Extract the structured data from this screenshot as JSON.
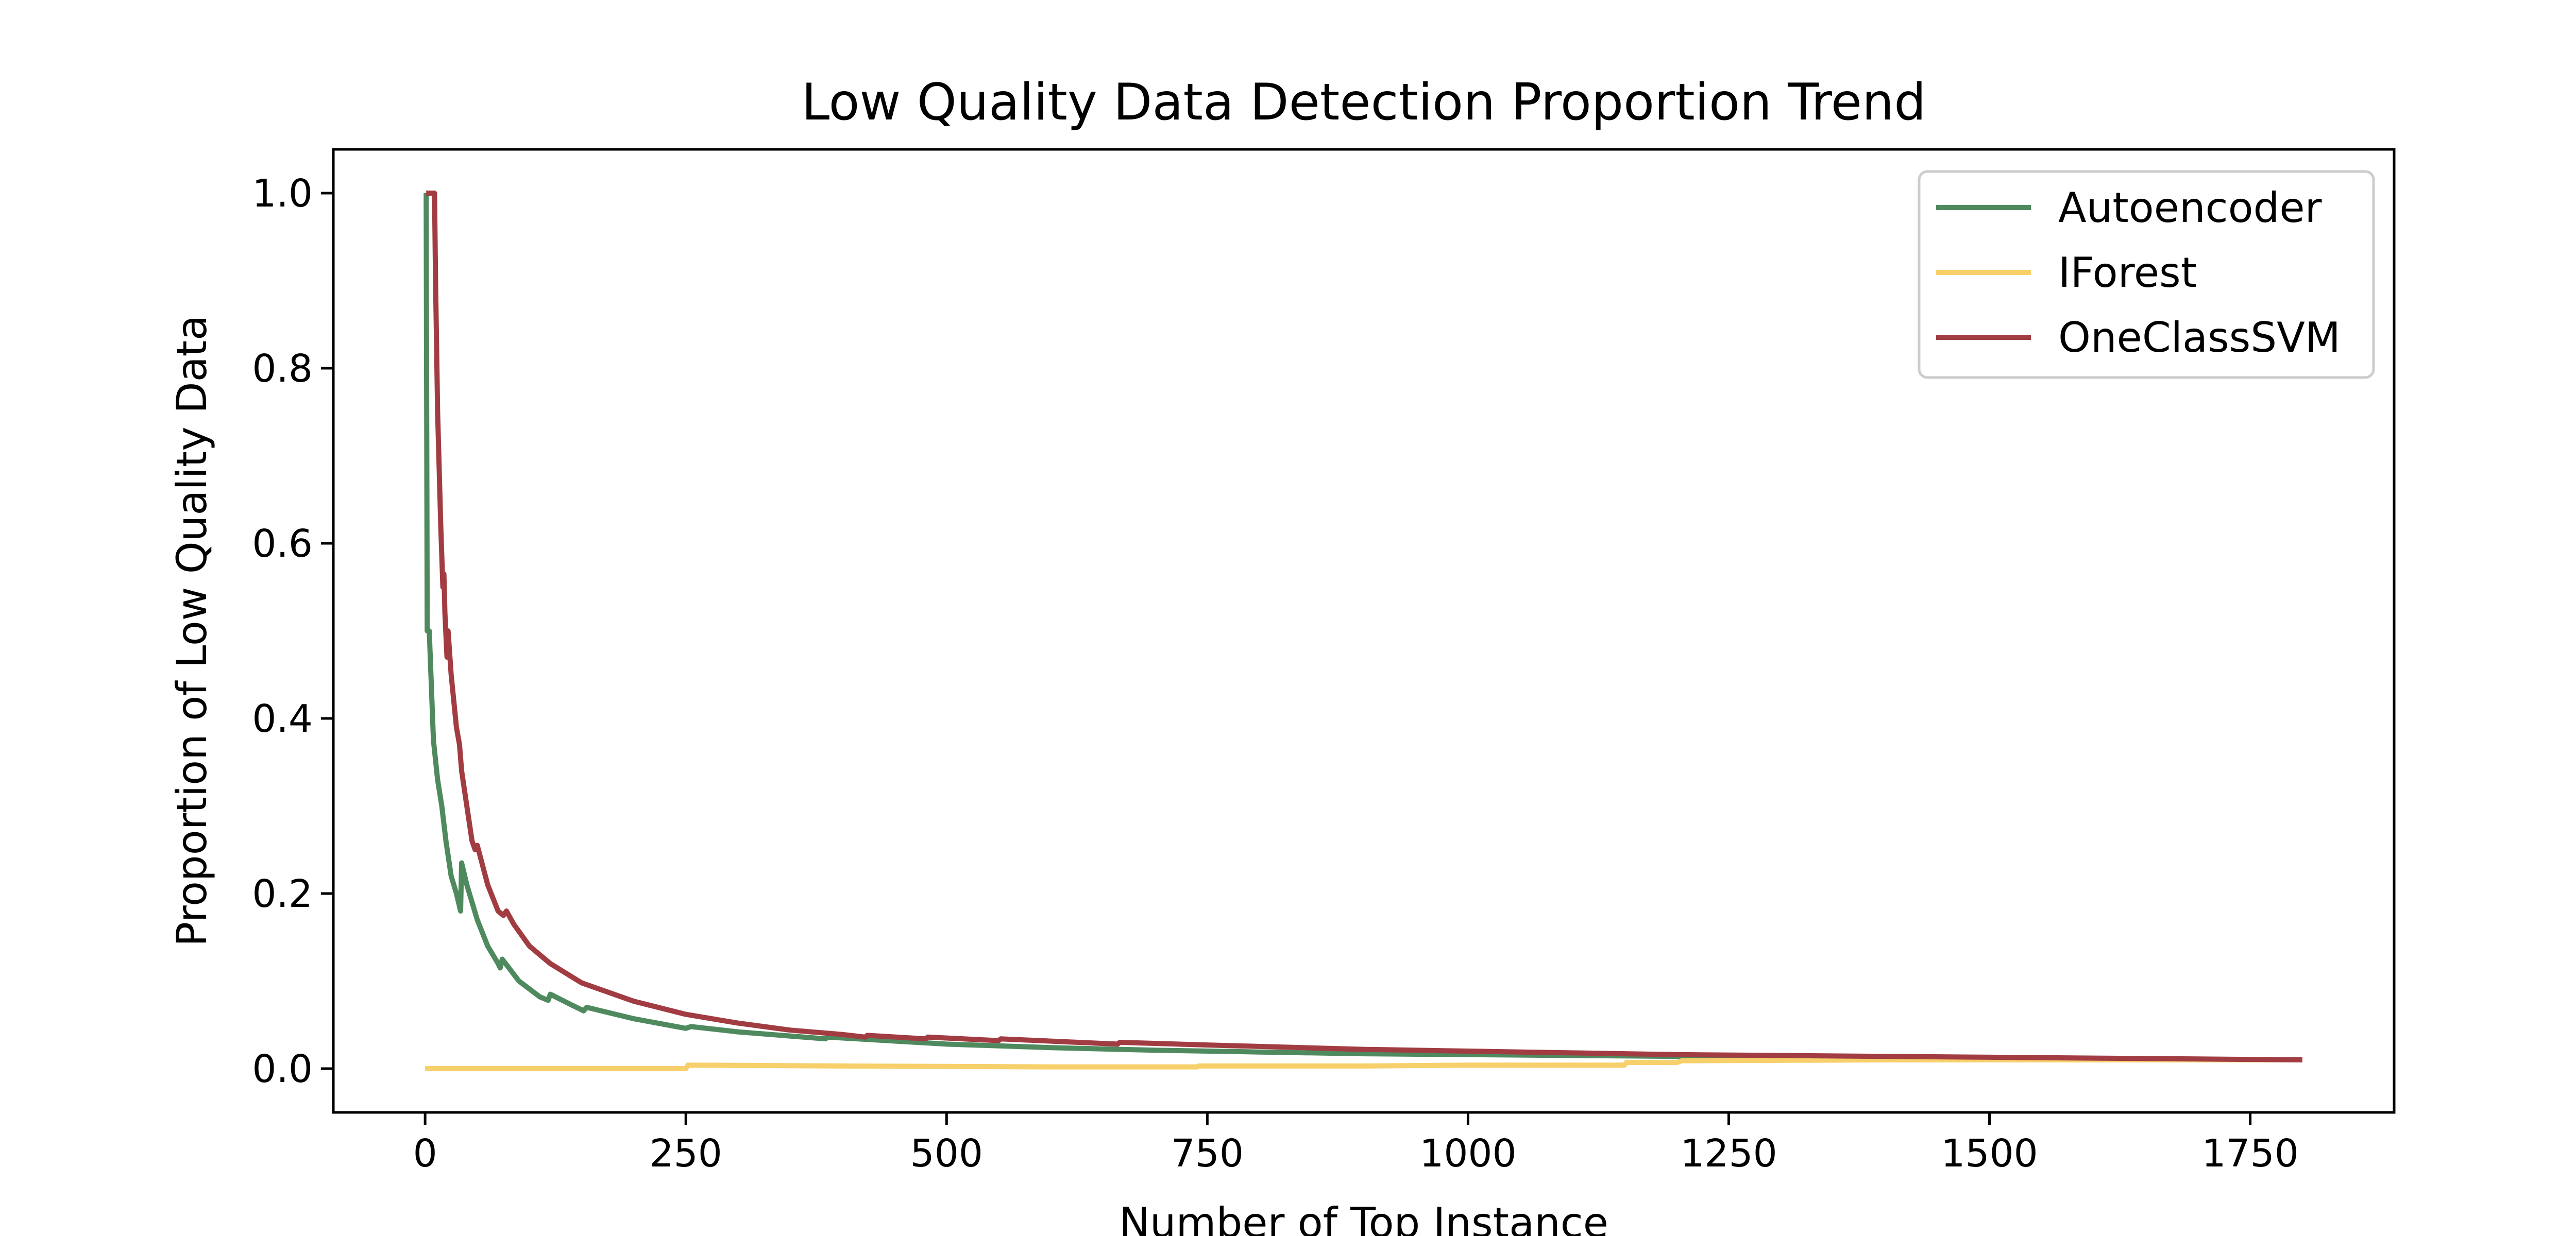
{
  "chart_data": {
    "type": "line",
    "title": "Low Quality Data Detection Proportion Trend",
    "xlabel": "Number of Top Instance",
    "ylabel": "Proportion of Low Quality Data",
    "xlim": [
      -88,
      1888
    ],
    "ylim": [
      -0.05,
      1.05
    ],
    "xticks": [
      0,
      250,
      500,
      750,
      1000,
      1250,
      1500,
      1750
    ],
    "xtick_labels": [
      "0",
      "250",
      "500",
      "750",
      "1000",
      "1250",
      "1500",
      "1750"
    ],
    "yticks": [
      0.0,
      0.2,
      0.4,
      0.6,
      0.8,
      1.0
    ],
    "ytick_labels": [
      "0.0",
      "0.2",
      "0.4",
      "0.6",
      "0.8",
      "1.0"
    ],
    "grid": false,
    "legend_position": "top-right",
    "series": [
      {
        "name": "Autoencoder",
        "color": "#4f8a5f",
        "points": [
          [
            1,
            1.0
          ],
          [
            2,
            0.5
          ],
          [
            4,
            0.5
          ],
          [
            8,
            0.375
          ],
          [
            12,
            0.33
          ],
          [
            16,
            0.3
          ],
          [
            20,
            0.26
          ],
          [
            25,
            0.22
          ],
          [
            30,
            0.2
          ],
          [
            34,
            0.18
          ],
          [
            35,
            0.235
          ],
          [
            40,
            0.21
          ],
          [
            50,
            0.17
          ],
          [
            60,
            0.14
          ],
          [
            70,
            0.12
          ],
          [
            72,
            0.115
          ],
          [
            74,
            0.125
          ],
          [
            90,
            0.1
          ],
          [
            110,
            0.082
          ],
          [
            118,
            0.078
          ],
          [
            120,
            0.085
          ],
          [
            140,
            0.073
          ],
          [
            152,
            0.066
          ],
          [
            155,
            0.07
          ],
          [
            200,
            0.057
          ],
          [
            250,
            0.046
          ],
          [
            255,
            0.048
          ],
          [
            300,
            0.042
          ],
          [
            384,
            0.034
          ],
          [
            386,
            0.036
          ],
          [
            500,
            0.028
          ],
          [
            600,
            0.024
          ],
          [
            700,
            0.021
          ],
          [
            800,
            0.019
          ],
          [
            900,
            0.017
          ],
          [
            1000,
            0.016
          ],
          [
            1100,
            0.015
          ],
          [
            1200,
            0.014
          ],
          [
            1300,
            0.013
          ],
          [
            1400,
            0.012
          ],
          [
            1500,
            0.012
          ],
          [
            1600,
            0.011
          ],
          [
            1700,
            0.0105
          ],
          [
            1800,
            0.01
          ]
        ]
      },
      {
        "name": "IForest",
        "color": "#f7d06b",
        "points": [
          [
            0,
            0.0
          ],
          [
            250,
            0.0
          ],
          [
            252,
            0.004
          ],
          [
            400,
            0.003
          ],
          [
            600,
            0.002
          ],
          [
            740,
            0.002
          ],
          [
            742,
            0.003
          ],
          [
            900,
            0.003
          ],
          [
            1000,
            0.004
          ],
          [
            1150,
            0.004
          ],
          [
            1152,
            0.007
          ],
          [
            1200,
            0.007
          ],
          [
            1205,
            0.009
          ],
          [
            1400,
            0.01
          ],
          [
            1600,
            0.01
          ],
          [
            1800,
            0.01
          ]
        ]
      },
      {
        "name": "OneClassSVM",
        "color": "#a13d42",
        "points": [
          [
            1,
            1.0
          ],
          [
            9,
            1.0
          ],
          [
            10,
            0.9
          ],
          [
            12,
            0.75
          ],
          [
            15,
            0.62
          ],
          [
            17,
            0.55
          ],
          [
            18,
            0.565
          ],
          [
            19,
            0.52
          ],
          [
            21,
            0.47
          ],
          [
            22,
            0.5
          ],
          [
            25,
            0.45
          ],
          [
            30,
            0.39
          ],
          [
            33,
            0.37
          ],
          [
            35,
            0.34
          ],
          [
            40,
            0.3
          ],
          [
            45,
            0.26
          ],
          [
            48,
            0.25
          ],
          [
            50,
            0.255
          ],
          [
            60,
            0.21
          ],
          [
            70,
            0.18
          ],
          [
            75,
            0.175
          ],
          [
            78,
            0.18
          ],
          [
            85,
            0.165
          ],
          [
            100,
            0.14
          ],
          [
            120,
            0.12
          ],
          [
            150,
            0.098
          ],
          [
            200,
            0.077
          ],
          [
            250,
            0.062
          ],
          [
            300,
            0.052
          ],
          [
            350,
            0.044
          ],
          [
            400,
            0.039
          ],
          [
            422,
            0.036
          ],
          [
            424,
            0.038
          ],
          [
            480,
            0.034
          ],
          [
            482,
            0.036
          ],
          [
            550,
            0.032
          ],
          [
            552,
            0.034
          ],
          [
            664,
            0.028
          ],
          [
            666,
            0.03
          ],
          [
            750,
            0.027
          ],
          [
            900,
            0.022
          ],
          [
            1000,
            0.02
          ],
          [
            1100,
            0.018
          ],
          [
            1200,
            0.016
          ],
          [
            1300,
            0.015
          ],
          [
            1400,
            0.014
          ],
          [
            1500,
            0.013
          ],
          [
            1600,
            0.012
          ],
          [
            1700,
            0.011
          ],
          [
            1800,
            0.01
          ]
        ]
      }
    ]
  }
}
